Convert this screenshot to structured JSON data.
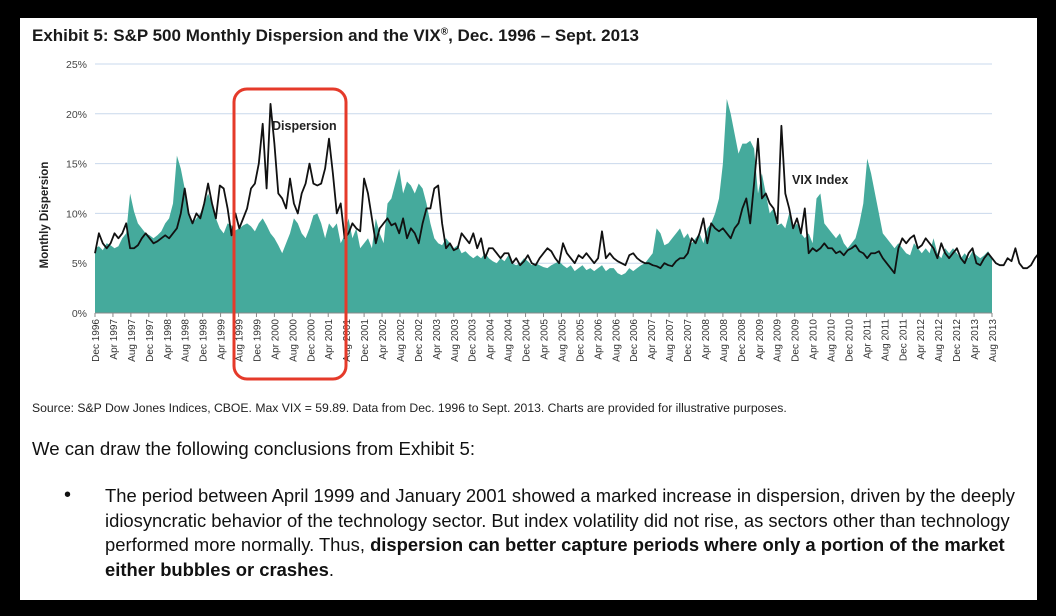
{
  "exhibit": {
    "title": "Exhibit 5: S&P 500 Monthly Dispersion and the VIX",
    "title_reg": "®",
    "title_tail": ", Dec. 1996 – Sept. 2013"
  },
  "chart_data": {
    "type": "area",
    "title": "Exhibit 5: S&P 500 Monthly Dispersion and the VIX®, Dec. 1996 – Sept. 2013",
    "xlabel": "",
    "ylabel": "Monthly Dispersion",
    "ylim": [
      0,
      25
    ],
    "yticks": [
      0,
      5,
      10,
      15,
      20,
      25
    ],
    "ytick_labels": [
      "0%",
      "5%",
      "10%",
      "15%",
      "20%",
      "25%"
    ],
    "grid": true,
    "x_start": "Dec 1996",
    "x_end": "Sep 2013",
    "x_tick_labels": [
      "Dec 1996",
      "Apr 1997",
      "Aug 1997",
      "Dec 1997",
      "Apr 1998",
      "Aug 1998",
      "Dec 1998",
      "Apr 1999",
      "Aug 1999",
      "Dec 1999",
      "Apr 2000",
      "Aug 2000",
      "Dec 2000",
      "Apr 2001",
      "Aug 2001",
      "Dec 2001",
      "Apr 2002",
      "Aug 2002",
      "Dec 2002",
      "Apr 2003",
      "Aug 2003",
      "Dec 2003",
      "Apr 2004",
      "Aug 2004",
      "Dec 2004",
      "Apr 2005",
      "Aug 2005",
      "Dec 2005",
      "Apr 2006",
      "Aug 2006",
      "Dec 2006",
      "Apr 2007",
      "Aug 2007",
      "Dec 2007",
      "Apr 2008",
      "Aug 2008",
      "Dec 2008",
      "Apr 2009",
      "Aug 2009",
      "Dec 2009",
      "Apr 2010",
      "Aug 2010",
      "Dec 2010",
      "Apr 2011",
      "Aug 2011",
      "Dec 2011",
      "Apr 2012",
      "Aug 2012",
      "Dec 2012",
      "Apr 2013",
      "Aug 2013"
    ],
    "series": [
      {
        "name": "Dispersion",
        "style": "area",
        "color": "#45aa9c",
        "values": [
          6.5,
          6.7,
          6.3,
          7,
          6.8,
          6.5,
          6.7,
          7.5,
          8,
          12,
          10.2,
          9,
          8.5,
          8,
          7.8,
          7.5,
          7.8,
          8.2,
          9,
          9.5,
          11,
          15.8,
          14.5,
          12.5,
          10,
          9,
          9.5,
          10,
          11,
          12,
          11,
          9.5,
          8.5,
          8,
          9,
          8.8,
          8.3,
          8.5,
          8.8,
          9,
          8.7,
          8.2,
          9,
          9.5,
          8.8,
          8,
          7.5,
          6.8,
          6,
          7,
          8,
          9.5,
          9,
          8,
          7.5,
          8.5,
          9.8,
          10,
          9,
          7.5,
          9,
          8.5,
          9,
          7,
          7.8,
          9.5,
          7.5,
          8.5,
          6.5,
          7,
          7.5,
          6.5,
          9.5,
          8,
          7,
          11,
          11.5,
          13,
          14.5,
          12,
          13.2,
          12.8,
          12,
          13,
          12.5,
          11,
          9,
          7.5,
          7,
          6.8,
          7.5,
          7,
          6.5,
          6.8,
          6,
          6.2,
          5.8,
          5.5,
          5.8,
          5.5,
          6,
          5.5,
          5.2,
          5,
          5.5,
          5.2,
          5.8,
          5,
          4.8,
          5,
          5.5,
          5.2,
          4.8,
          5,
          4.8,
          4.6,
          4.5,
          4.8,
          5,
          5.2,
          4.8,
          4.5,
          4.8,
          4.2,
          4.5,
          4.8,
          4.3,
          4.5,
          4.2,
          4.5,
          4.8,
          4.2,
          4.5,
          4.5,
          4,
          3.8,
          4,
          4.5,
          4.2,
          4.5,
          4.8,
          5,
          5.5,
          6,
          8.5,
          8,
          6.8,
          7,
          7.5,
          8,
          8.5,
          7.5,
          8,
          7,
          7.5,
          8,
          7,
          8.5,
          9,
          10,
          11.5,
          15,
          21.5,
          20,
          18,
          16,
          17,
          17,
          17.3,
          16.5,
          12,
          14,
          12,
          10,
          10.5,
          8.8,
          9,
          8.5,
          10,
          8.5,
          9,
          8,
          7.5,
          8,
          7,
          11.5,
          12,
          9,
          8.5,
          8,
          7.5,
          8,
          7,
          6.5,
          7,
          7.5,
          9,
          11,
          15.5,
          14,
          12,
          10,
          8,
          7.5,
          7,
          6.5,
          7,
          6.5,
          6,
          5.8,
          7,
          6.5,
          6,
          6.5,
          6,
          7.5,
          6,
          5.5,
          6.5,
          6,
          6.5,
          6,
          5.5,
          6,
          5.5,
          6.2,
          5.8,
          5.5,
          5.8,
          6.2,
          5.5
        ],
        "markers": []
      },
      {
        "name": "VIX Index",
        "style": "line",
        "color": "#111111",
        "values": [
          6,
          8,
          7,
          6.5,
          7,
          8,
          7.5,
          8,
          9,
          6.5,
          6.5,
          6.8,
          7.5,
          8,
          7.5,
          7,
          7.2,
          7.5,
          7.8,
          7.5,
          8,
          8.5,
          10,
          12.5,
          10,
          9,
          10,
          9.5,
          11,
          13,
          11,
          9.5,
          12.8,
          12.5,
          10.5,
          7.8,
          10,
          8.5,
          9.5,
          10.5,
          12.5,
          13,
          15,
          19,
          12.5,
          21,
          17,
          12,
          11.5,
          10.5,
          13.5,
          11,
          10,
          12,
          13,
          15,
          13,
          12.8,
          13,
          14.5,
          17.5,
          14,
          10,
          11,
          7.5,
          8,
          9,
          8.5,
          8.2,
          13.5,
          12,
          9.5,
          7,
          8.5,
          9,
          9.5,
          8.8,
          9,
          8,
          9.5,
          7.5,
          8.5,
          8,
          7,
          9,
          10.5,
          10.5,
          12.5,
          12.8,
          9,
          6.5,
          7,
          6.3,
          6.5,
          8,
          7.5,
          7,
          8,
          6.5,
          7.5,
          5.5,
          6.5,
          6.5,
          6,
          5.5,
          6,
          6,
          5,
          5.5,
          4.8,
          5.2,
          5.8,
          5,
          4.8,
          5.5,
          6,
          6.5,
          6.2,
          5.5,
          5,
          7,
          6,
          5.5,
          5,
          5.8,
          5.5,
          6,
          5.5,
          5,
          5.5,
          8.2,
          5.5,
          6,
          5.5,
          5.2,
          5,
          4.8,
          5.8,
          6,
          5.5,
          5.2,
          5,
          5,
          4.8,
          4.7,
          4.5,
          5,
          4.8,
          4.7,
          5.2,
          5.5,
          5.5,
          6,
          7.5,
          7,
          8,
          9.5,
          7,
          9,
          8.5,
          8.2,
          8.5,
          8,
          7.5,
          8.5,
          9,
          10.5,
          11.5,
          9,
          13,
          17.5,
          11.5,
          12,
          11,
          10.5,
          9,
          18.8,
          12,
          10.5,
          8.5,
          9.5,
          8,
          10.5,
          6,
          6.5,
          6.2,
          6.5,
          7,
          6.5,
          6.5,
          6,
          6.2,
          5.8,
          6.3,
          6.5,
          6.8,
          6.2,
          6,
          5.5,
          6,
          6,
          6.2,
          5.5,
          5,
          4.5,
          4,
          6.5,
          7.5,
          7,
          7.5,
          7.8,
          6.5,
          6.8,
          7.5,
          7,
          6.5,
          5.5,
          7,
          6,
          5.5,
          6,
          6.5,
          5.5,
          5,
          6,
          6.5,
          5,
          4.8,
          5.5,
          6,
          5.5,
          5,
          4.8,
          4.8,
          5.5,
          5.2,
          6.5,
          5,
          4.5,
          4.5,
          4.8,
          5.5,
          6,
          4.5,
          4.5
        ],
        "markers": []
      }
    ],
    "annotations": [
      {
        "text": "Dispersion"
      },
      {
        "text": "VIX Index"
      }
    ]
  },
  "source": {
    "text": "Source: S&P Dow Jones Indices, CBOE. Max VIX = 59.89. Data from Dec. 1996 to Sept. 2013. Charts are provided for illustrative purposes."
  },
  "body": {
    "intro": "We can draw the following conclusions from Exhibit 5:",
    "bullet_glyph": "•",
    "bullet_normal": "The period between April 1999 and January 2001 showed a marked increase in dispersion, driven by the deeply idiosyncratic behavior of the technology sector.  But index volatility did not rise, as sectors other than technology performed more normally.  Thus, ",
    "bullet_bold": "dispersion can better capture periods where only a portion of the market either bubbles or crashes",
    "bullet_end": "."
  },
  "colors": {
    "dispersion_fill": "#45aa9c",
    "vix_line": "#111111",
    "highlight_box": "#e53a2a",
    "grid": "#c9d8ec"
  }
}
